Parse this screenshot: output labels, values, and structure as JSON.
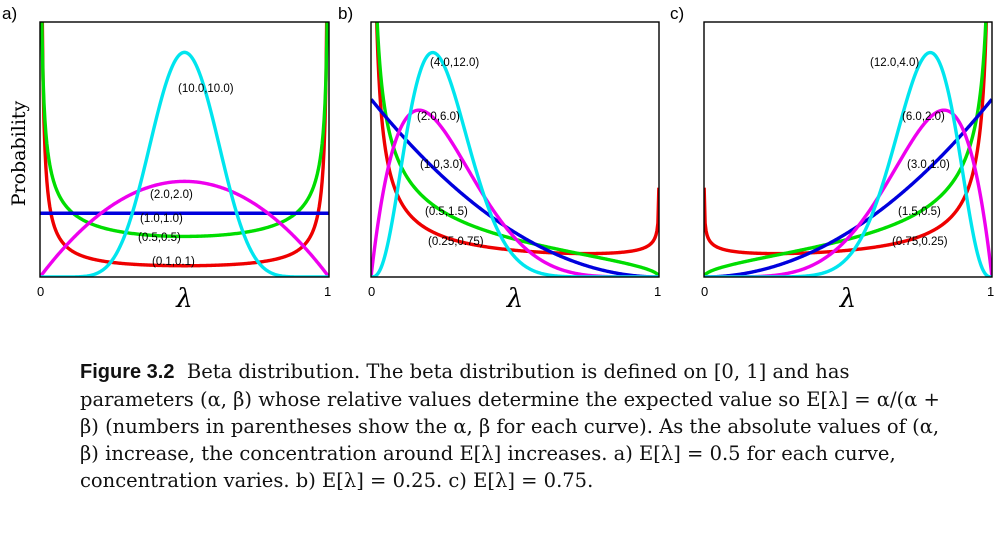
{
  "chart_data": [
    {
      "type": "line",
      "panel_label": "a)",
      "ylabel": "Probability",
      "xlabel": "λ",
      "x_ticks": [
        "0",
        "1"
      ],
      "xlim": [
        0,
        1
      ],
      "ylim": [
        0,
        4.0
      ],
      "grid": false,
      "series": [
        {
          "name": "(0.1,0.1)",
          "alpha": 0.1,
          "beta": 0.1,
          "color": "#ee0000"
        },
        {
          "name": "(0.5,0.5)",
          "alpha": 0.5,
          "beta": 0.5,
          "color": "#00dd00"
        },
        {
          "name": "(1.0,1.0)",
          "alpha": 1.0,
          "beta": 1.0,
          "color": "#0000dd"
        },
        {
          "name": "(2.0,2.0)",
          "alpha": 2.0,
          "beta": 2.0,
          "color": "#ee00ee"
        },
        {
          "name": "(10.0,10.0)",
          "alpha": 10.0,
          "beta": 10.0,
          "color": "#00e5ee"
        }
      ]
    },
    {
      "type": "line",
      "panel_label": "b)",
      "xlabel": "λ",
      "x_ticks": [
        "0",
        "1"
      ],
      "xlim": [
        0,
        1
      ],
      "ylim": [
        0,
        4.3
      ],
      "grid": false,
      "series": [
        {
          "name": "(0.25,0.75)",
          "alpha": 0.25,
          "beta": 0.75,
          "color": "#ee0000"
        },
        {
          "name": "(0.5,1.5)",
          "alpha": 0.5,
          "beta": 1.5,
          "color": "#00dd00"
        },
        {
          "name": "(1.0,3.0)",
          "alpha": 1.0,
          "beta": 3.0,
          "color": "#0000dd"
        },
        {
          "name": "(2.0,6.0)",
          "alpha": 2.0,
          "beta": 6.0,
          "color": "#ee00ee"
        },
        {
          "name": "(4.0,12.0)",
          "alpha": 4.0,
          "beta": 12.0,
          "color": "#00e5ee"
        }
      ]
    },
    {
      "type": "line",
      "panel_label": "c)",
      "xlabel": "λ",
      "x_ticks": [
        "0",
        "1"
      ],
      "xlim": [
        0,
        1
      ],
      "ylim": [
        0,
        4.3
      ],
      "grid": false,
      "series": [
        {
          "name": "(0.75,0.25)",
          "alpha": 0.75,
          "beta": 0.25,
          "color": "#ee0000"
        },
        {
          "name": "(1.5,0.5)",
          "alpha": 1.5,
          "beta": 0.5,
          "color": "#00dd00"
        },
        {
          "name": "(3.0,1.0)",
          "alpha": 3.0,
          "beta": 1.0,
          "color": "#0000dd"
        },
        {
          "name": "(6.0,2.0)",
          "alpha": 6.0,
          "beta": 2.0,
          "color": "#ee00ee"
        },
        {
          "name": "(12.0,4.0)",
          "alpha": 12.0,
          "beta": 4.0,
          "color": "#00e5ee"
        }
      ]
    }
  ],
  "caption": {
    "label": "Figure 3.2",
    "text": "Beta distribution. The beta distribution is defined on [0, 1] and has parameters (α, β) whose relative values determine the expected value so E[λ] = α/(α + β) (numbers in parentheses show the α, β for each curve). As the absolute values of (α, β) increase, the concentration around E[λ] increases. a) E[λ] = 0.5 for each curve, concentration varies. b) E[λ] = 0.25. c) E[λ] = 0.75."
  }
}
